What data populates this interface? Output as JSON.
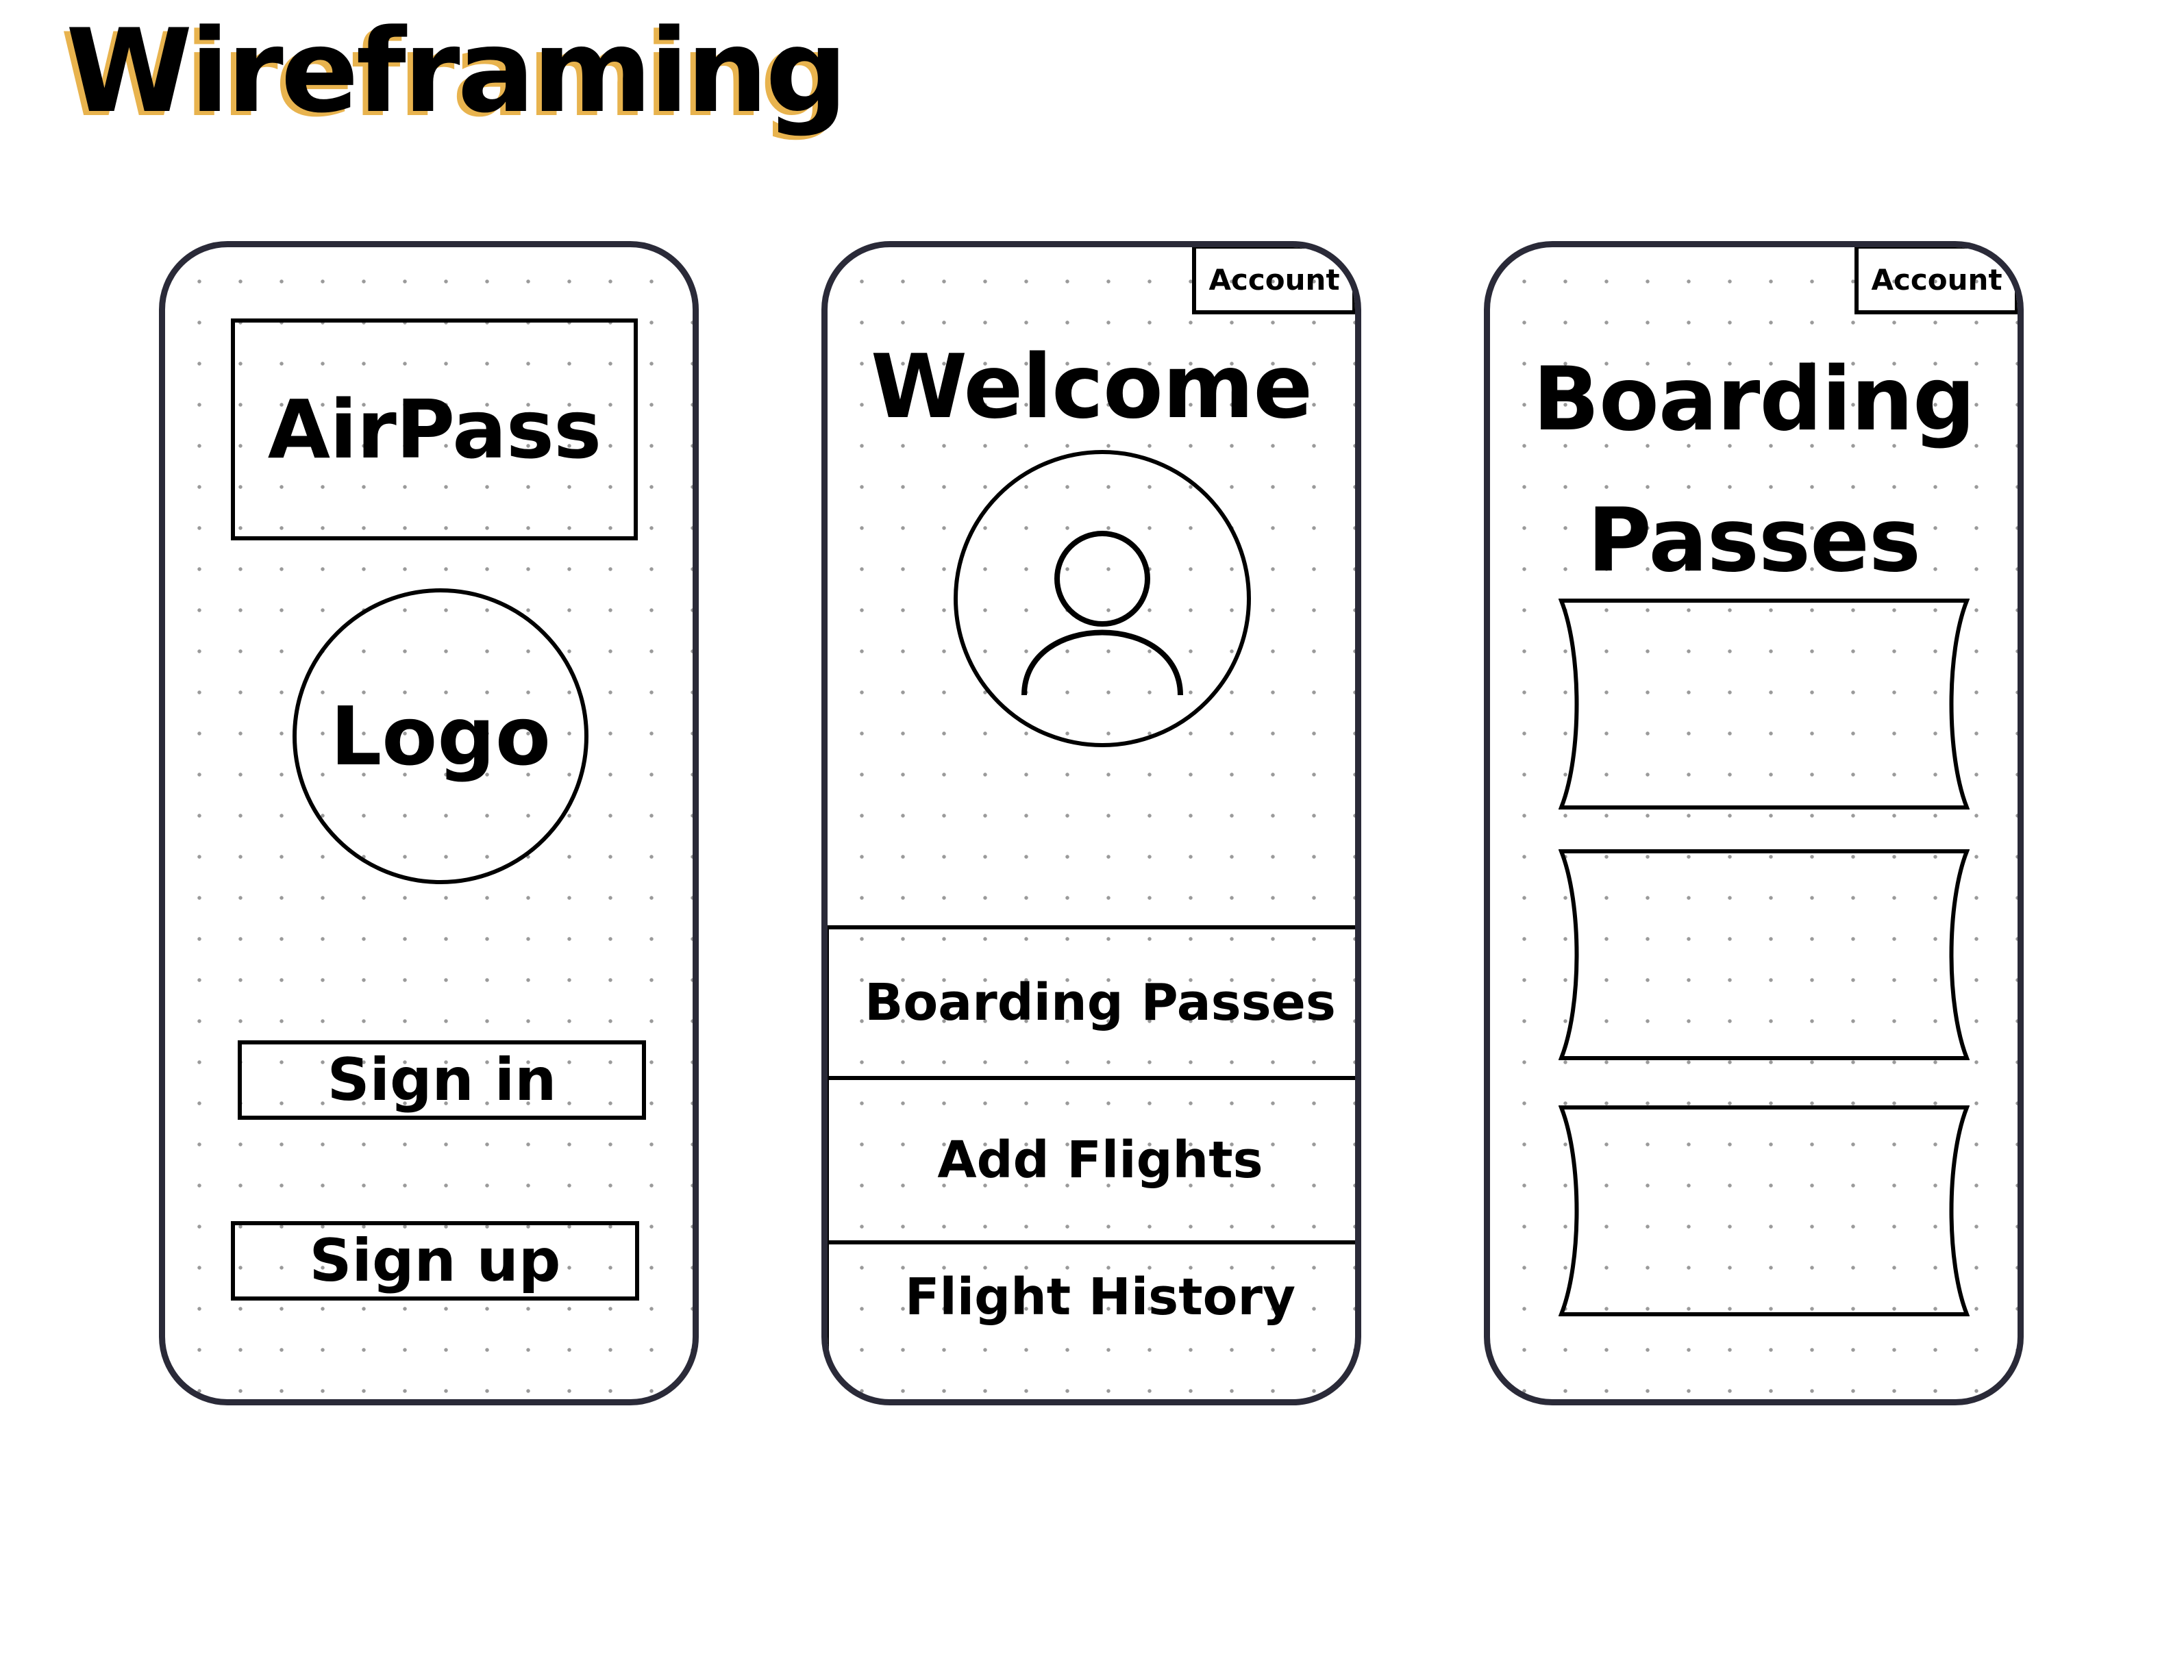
{
  "title": "Wireframing",
  "colors": {
    "title_shadow": "#e8b34e",
    "frame": "#2a2a38",
    "stroke": "#000000",
    "dots": "#9a9a9a"
  },
  "screens": [
    {
      "brand": "AirPass",
      "logo_label": "Logo",
      "buttons": [
        "Sign in",
        "Sign up"
      ]
    },
    {
      "account_label": "Account",
      "heading": "Welcome",
      "avatar_icon": "user-icon",
      "menu": [
        "Boarding Passes",
        "Add Flights",
        "Flight History"
      ]
    },
    {
      "account_label": "Account",
      "heading_line1": "Boarding",
      "heading_line2": "Passes",
      "tickets": 3
    }
  ]
}
